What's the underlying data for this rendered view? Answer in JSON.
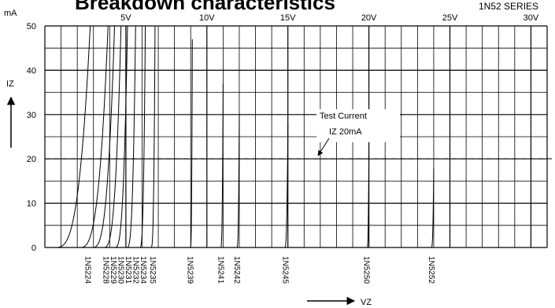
{
  "chart_data": {
    "type": "line",
    "title": "Breakdown characteristics",
    "subtitle": "1N52 SERIES",
    "xlabel": "VZ",
    "ylabel": "IZ",
    "yunit": "mA",
    "xlim": [
      0,
      31
    ],
    "ylim": [
      0,
      50
    ],
    "x_tick_labels": [
      {
        "x": 5,
        "label": "5V"
      },
      {
        "x": 10,
        "label": "10V"
      },
      {
        "x": 15,
        "label": "15V"
      },
      {
        "x": 20,
        "label": "20V"
      },
      {
        "x": 25,
        "label": "25V"
      },
      {
        "x": 30,
        "label": "30V"
      }
    ],
    "y_ticks": [
      0,
      10,
      20,
      30,
      40,
      50
    ],
    "grid": true,
    "test_current": {
      "value": 20,
      "label_line1": "Test Current",
      "label_line2": "IZ 20mA"
    },
    "series": [
      {
        "name": "1N5224",
        "vz": 2.8,
        "imax": 50,
        "soft": 2.2
      },
      {
        "name": "1N5228",
        "vz": 3.9,
        "imax": 50,
        "soft": 1.8
      },
      {
        "name": "1N5229",
        "vz": 4.3,
        "imax": 50,
        "soft": 1.4
      },
      {
        "name": "1N5230",
        "vz": 4.7,
        "imax": 50,
        "soft": 1.1
      },
      {
        "name": "1N5231",
        "vz": 5.1,
        "imax": 50,
        "soft": 0.8
      },
      {
        "name": "1N5232",
        "vz": 5.6,
        "imax": 50,
        "soft": 0.55
      },
      {
        "name": "1N5234",
        "vz": 6.2,
        "imax": 50,
        "soft": 0.35
      },
      {
        "name": "1N5235",
        "vz": 6.8,
        "imax": 50,
        "soft": 0.25
      },
      {
        "name": "1N5239",
        "vz": 9.1,
        "imax": 47,
        "soft": 0.12
      },
      {
        "name": "1N5241",
        "vz": 11,
        "imax": 37,
        "soft": 0.15
      },
      {
        "name": "1N5242",
        "vz": 12,
        "imax": 30,
        "soft": 0.15
      },
      {
        "name": "1N5245",
        "vz": 15,
        "imax": 28,
        "soft": 0.2
      },
      {
        "name": "1N5250",
        "vz": 20,
        "imax": 22,
        "soft": 0.12
      },
      {
        "name": "1N5252",
        "vz": 24,
        "imax": 18,
        "soft": 0.15
      }
    ]
  }
}
